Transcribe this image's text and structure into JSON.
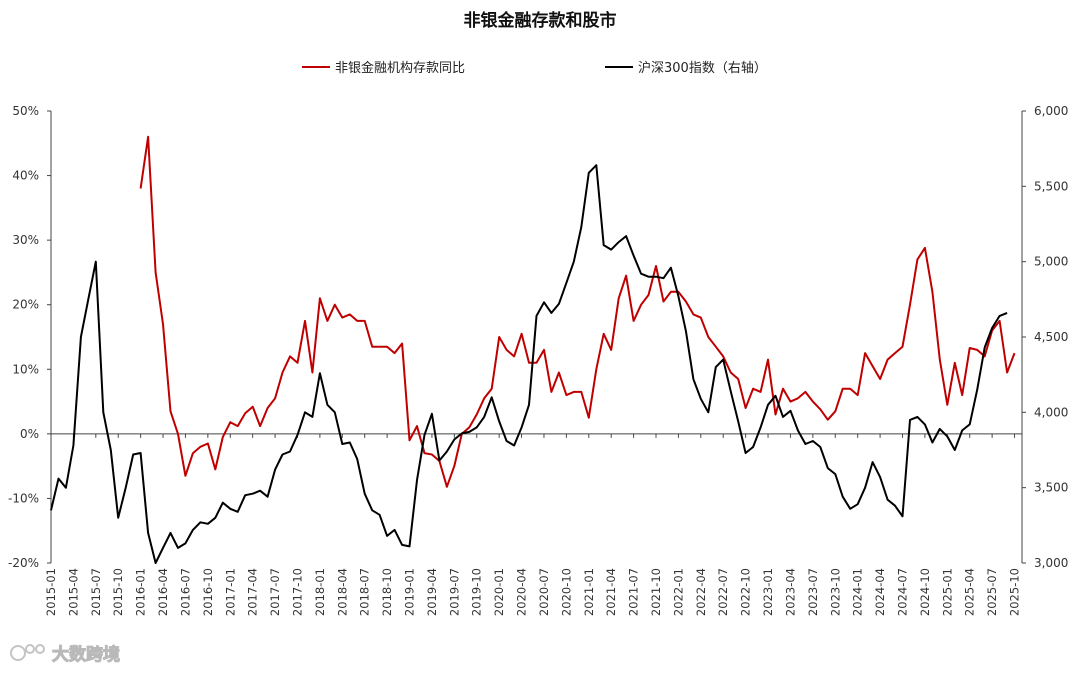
{
  "chart_data": {
    "type": "line",
    "title": "非银金融存款和股市",
    "xlabel": "",
    "ylabel": "",
    "y_left_lim": [
      -20,
      50
    ],
    "y_left_ticks": [
      "50%",
      "40%",
      "30%",
      "20%",
      "10%",
      "0%",
      "-10%",
      "-20%"
    ],
    "y_right_lim": [
      3000,
      6000
    ],
    "y_right_ticks": [
      "6,000",
      "5,500",
      "5,000",
      "4,500",
      "4,000",
      "3,500",
      "3,000"
    ],
    "x_tick_labels": [
      "2015-01",
      "2015-04",
      "2015-07",
      "2015-10",
      "2016-01",
      "2016-04",
      "2016-07",
      "2016-10",
      "2017-01",
      "2017-04",
      "2017-07",
      "2017-10",
      "2018-01",
      "2018-04",
      "2018-07",
      "2018-10",
      "2019-01",
      "2019-04",
      "2019-07",
      "2019-10",
      "2020-01",
      "2020-04",
      "2020-07",
      "2020-10",
      "2021-01",
      "2021-04",
      "2021-07",
      "2021-10",
      "2022-01",
      "2022-04",
      "2022-07",
      "2022-10",
      "2023-01",
      "2023-04",
      "2023-07",
      "2023-10",
      "2024-01",
      "2024-04",
      "2024-07",
      "2024-10",
      "2025-01",
      "2025-04",
      "2025-07",
      "2025-10"
    ],
    "grid": false,
    "legend_position": "top",
    "series": [
      {
        "name": "非银金融机构存款同比",
        "axis": "left",
        "color": "#c00000",
        "start": "2016-01",
        "values": [
          38,
          46,
          25,
          17,
          3.5,
          0,
          -6.5,
          -3,
          -2,
          -1.5,
          -5.5,
          -0.5,
          1.8,
          1.2,
          3.2,
          4.2,
          1.2,
          4,
          5.5,
          9.5,
          12,
          11,
          17.5,
          9.5,
          21,
          17.5,
          20,
          18,
          18.5,
          17.5,
          17.5,
          13.5,
          13.5,
          13.5,
          12.5,
          14,
          -1,
          1.2,
          -3,
          -3.2,
          -4.2,
          -8.2,
          -5,
          0,
          1,
          3,
          5.5,
          7,
          15,
          13,
          12,
          15.5,
          11,
          11,
          13,
          6.5,
          9.5,
          6,
          6.5,
          6.5,
          2.5,
          10,
          15.5,
          13,
          21,
          24.5,
          17.5,
          20,
          21.5,
          26,
          20.5,
          22,
          22,
          20.5,
          18.5,
          18,
          15,
          13.5,
          12,
          9.5,
          8.5,
          4,
          7,
          6.5,
          11.5,
          3,
          7,
          5,
          5.5,
          6.5,
          5,
          3.8,
          2.2,
          3.5,
          7,
          7,
          6,
          12.5,
          10.5,
          8.5,
          11.5,
          12.5,
          13.5,
          20,
          27,
          28.8,
          22,
          11.5,
          4.5,
          11,
          6,
          13.3,
          13,
          12,
          16,
          17.5,
          9.5,
          12.5
        ]
      },
      {
        "name": "沪深300指数（右轴）",
        "axis": "right",
        "color": "#000000",
        "start": "2015-01",
        "values": [
          3350,
          3560,
          3500,
          3780,
          4500,
          4750,
          5000,
          4000,
          3750,
          3300,
          3500,
          3720,
          3730,
          3200,
          3000,
          3100,
          3200,
          3100,
          3130,
          3220,
          3270,
          3260,
          3300,
          3400,
          3360,
          3340,
          3450,
          3460,
          3480,
          3440,
          3620,
          3720,
          3740,
          3850,
          4000,
          3970,
          4260,
          4050,
          4000,
          3790,
          3800,
          3690,
          3460,
          3350,
          3320,
          3180,
          3220,
          3120,
          3110,
          3550,
          3850,
          3990,
          3680,
          3740,
          3820,
          3860,
          3870,
          3900,
          3970,
          4100,
          3940,
          3810,
          3780,
          3900,
          4050,
          4640,
          4730,
          4660,
          4720,
          4860,
          5000,
          5230,
          5590,
          5640,
          5110,
          5080,
          5130,
          5170,
          5040,
          4920,
          4900,
          4900,
          4890,
          4960,
          4770,
          4540,
          4220,
          4090,
          4000,
          4300,
          4350,
          4140,
          3940,
          3730,
          3770,
          3900,
          4050,
          4110,
          3970,
          4010,
          3880,
          3790,
          3810,
          3770,
          3630,
          3590,
          3440,
          3360,
          3390,
          3500,
          3670,
          3570,
          3420,
          3380,
          3310,
          3950,
          3970,
          3920,
          3800,
          3890,
          3840,
          3750,
          3880,
          3920,
          4150,
          4430,
          4560,
          4640,
          4660
        ]
      }
    ]
  },
  "watermark": "大数跨境"
}
